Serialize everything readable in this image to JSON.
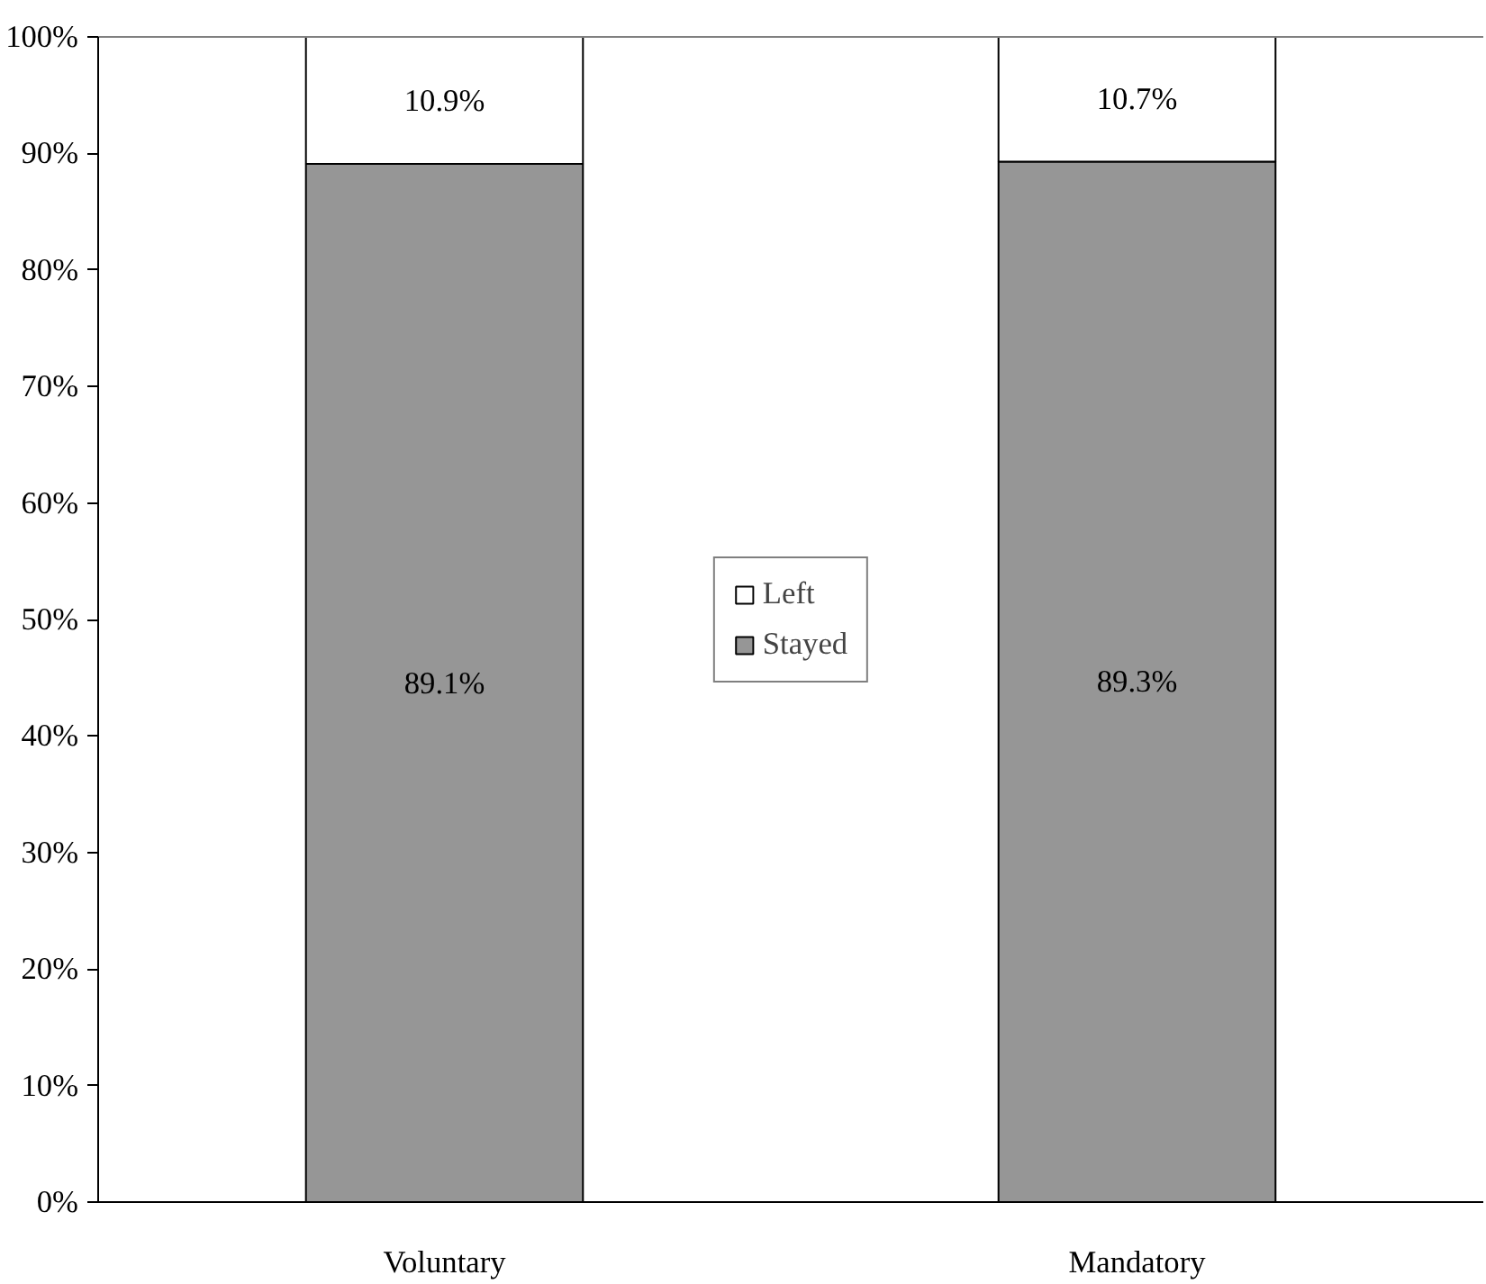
{
  "chart_data": {
    "type": "bar",
    "stacked": true,
    "categories": [
      "Voluntary",
      "Mandatory"
    ],
    "series": [
      {
        "name": "Stayed",
        "color": "#969696",
        "values": [
          89.1,
          89.3
        ],
        "value_labels": [
          "89.1%",
          "89.3%"
        ]
      },
      {
        "name": "Left",
        "color": "#ffffff",
        "values": [
          10.9,
          10.7
        ],
        "value_labels": [
          "10.9%",
          "10.7%"
        ]
      }
    ],
    "ylim": [
      0,
      100
    ],
    "yticks": [
      {
        "value": 0,
        "label": "0%"
      },
      {
        "value": 10,
        "label": "10%"
      },
      {
        "value": 20,
        "label": "20%"
      },
      {
        "value": 30,
        "label": "30%"
      },
      {
        "value": 40,
        "label": "40%"
      },
      {
        "value": 50,
        "label": "50%"
      },
      {
        "value": 60,
        "label": "60%"
      },
      {
        "value": 70,
        "label": "70%"
      },
      {
        "value": 80,
        "label": "80%"
      },
      {
        "value": 90,
        "label": "90%"
      },
      {
        "value": 100,
        "label": "100%"
      }
    ],
    "grid": false,
    "legend": "center"
  }
}
